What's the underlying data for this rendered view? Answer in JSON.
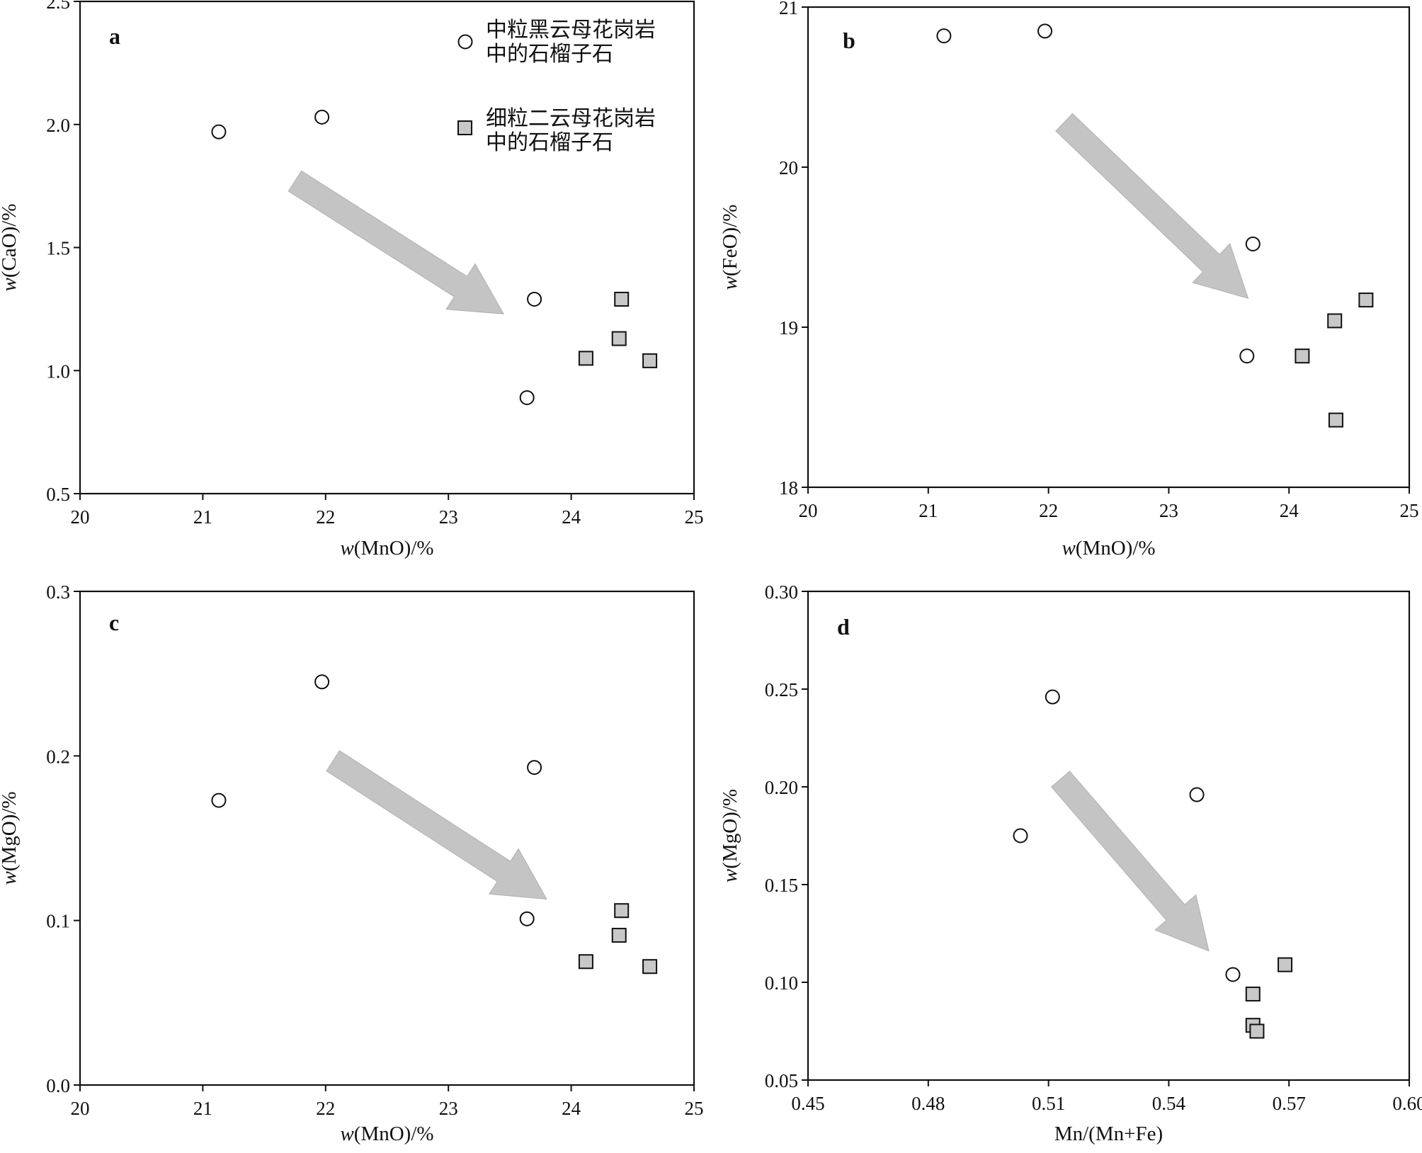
{
  "legend": {
    "circle": {
      "line1": "中粒黑云母花岗岩",
      "line2": "中的石榴子石"
    },
    "square": {
      "line1": "细粒二云母花岗岩",
      "line2": "中的石榴子石"
    }
  },
  "colors": {
    "square_fill": "#c8c8c8",
    "arrow_fill": "#c4c4c4",
    "axis": "#111111"
  },
  "chart_data": [
    {
      "id": "a",
      "type": "scatter",
      "panel_label": "a",
      "xlabel_italic": "w",
      "xlabel_rest": "(MnO)/%",
      "ylabel_italic": "w",
      "ylabel_rest": "(CaO)/%",
      "xlim": [
        20,
        25
      ],
      "ylim": [
        0.5,
        2.5
      ],
      "xticks": [
        "20",
        "21",
        "22",
        "23",
        "24",
        "25"
      ],
      "xtick_values": [
        20,
        21,
        22,
        23,
        24,
        25
      ],
      "yticks": [
        "0.5",
        "1.0",
        "1.5",
        "2.0",
        "2.5"
      ],
      "ytick_values": [
        0.5,
        1.0,
        1.5,
        2.0,
        2.5
      ],
      "series": [
        {
          "marker": "circle",
          "points": [
            [
              21.13,
              1.97
            ],
            [
              21.97,
              2.03
            ],
            [
              23.7,
              1.29
            ],
            [
              23.64,
              0.89
            ]
          ]
        },
        {
          "marker": "square",
          "points": [
            [
              24.41,
              1.29
            ],
            [
              24.39,
              1.13
            ],
            [
              24.12,
              1.05
            ],
            [
              24.64,
              1.04
            ]
          ]
        }
      ],
      "arrow": {
        "from": [
          21.75,
          1.77
        ],
        "to": [
          23.45,
          1.23
        ]
      }
    },
    {
      "id": "b",
      "type": "scatter",
      "panel_label": "b",
      "xlabel_italic": "w",
      "xlabel_rest": "(MnO)/%",
      "ylabel_italic": "w",
      "ylabel_rest": "(FeO)/%",
      "xlim": [
        20,
        25
      ],
      "ylim": [
        18,
        21
      ],
      "xticks": [
        "20",
        "21",
        "22",
        "23",
        "24",
        "25"
      ],
      "xtick_values": [
        20,
        21,
        22,
        23,
        24,
        25
      ],
      "yticks": [
        "18",
        "19",
        "20",
        "21"
      ],
      "ytick_values": [
        18,
        19,
        20,
        21
      ],
      "series": [
        {
          "marker": "circle",
          "points": [
            [
              21.13,
              20.82
            ],
            [
              21.97,
              20.85
            ],
            [
              23.7,
              19.52
            ],
            [
              23.65,
              18.82
            ]
          ]
        },
        {
          "marker": "square",
          "points": [
            [
              24.64,
              19.17
            ],
            [
              24.38,
              19.04
            ],
            [
              24.11,
              18.82
            ],
            [
              24.39,
              18.42
            ]
          ]
        }
      ],
      "arrow": {
        "from": [
          22.13,
          20.28
        ],
        "to": [
          23.66,
          19.18
        ]
      }
    },
    {
      "id": "c",
      "type": "scatter",
      "panel_label": "c",
      "xlabel_italic": "w",
      "xlabel_rest": "(MnO)/%",
      "ylabel_italic": "w",
      "ylabel_rest": "(MgO)/%",
      "xlim": [
        20,
        25
      ],
      "ylim": [
        0,
        0.3
      ],
      "xticks": [
        "20",
        "21",
        "22",
        "23",
        "24",
        "25"
      ],
      "xtick_values": [
        20,
        21,
        22,
        23,
        24,
        25
      ],
      "yticks": [
        "0.0",
        "0.1",
        "0.2",
        "0.3"
      ],
      "ytick_values": [
        0,
        0.1,
        0.2,
        0.3
      ],
      "series": [
        {
          "marker": "circle",
          "points": [
            [
              21.13,
              0.173
            ],
            [
              21.97,
              0.245
            ],
            [
              23.7,
              0.193
            ],
            [
              23.64,
              0.101
            ]
          ]
        },
        {
          "marker": "square",
          "points": [
            [
              24.41,
              0.106
            ],
            [
              24.39,
              0.091
            ],
            [
              24.12,
              0.075
            ],
            [
              24.64,
              0.072
            ]
          ]
        }
      ],
      "arrow": {
        "from": [
          22.06,
          0.197
        ],
        "to": [
          23.8,
          0.113
        ]
      }
    },
    {
      "id": "d",
      "type": "scatter",
      "panel_label": "d",
      "xlabel_italic": "",
      "xlabel_rest": "Mn/(Mn+Fe)",
      "ylabel_italic": "w",
      "ylabel_rest": "(MgO)/%",
      "xlim": [
        0.45,
        0.6
      ],
      "ylim": [
        0.05,
        0.3
      ],
      "xticks": [
        "0.45",
        "0.48",
        "0.51",
        "0.54",
        "0.57",
        "0.60"
      ],
      "xtick_values": [
        0.45,
        0.48,
        0.51,
        0.54,
        0.57,
        0.6
      ],
      "yticks": [
        "0.05",
        "0.10",
        "0.15",
        "0.20",
        "0.25",
        "0.30"
      ],
      "ytick_values": [
        0.05,
        0.1,
        0.15,
        0.2,
        0.25,
        0.3
      ],
      "series": [
        {
          "marker": "circle",
          "points": [
            [
              0.503,
              0.175
            ],
            [
              0.511,
              0.246
            ],
            [
              0.547,
              0.196
            ],
            [
              0.556,
              0.104
            ]
          ]
        },
        {
          "marker": "square",
          "points": [
            [
              0.569,
              0.109
            ],
            [
              0.561,
              0.094
            ],
            [
              0.561,
              0.078
            ],
            [
              0.562,
              0.075
            ]
          ]
        }
      ],
      "arrow": {
        "from": [
          0.513,
          0.204
        ],
        "to": [
          0.55,
          0.116
        ]
      }
    }
  ]
}
